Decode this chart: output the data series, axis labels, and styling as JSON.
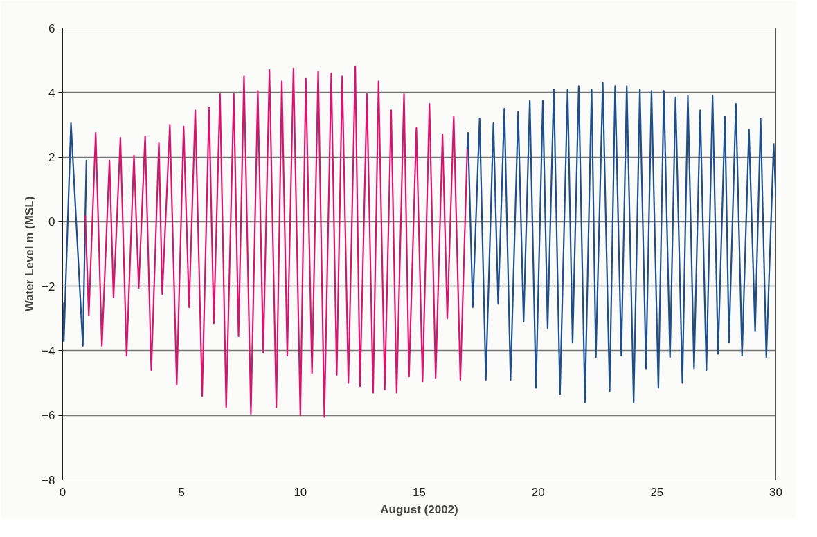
{
  "chart_data": {
    "type": "line",
    "xlabel": "August (2002)",
    "ylabel": "Water Level m (MSL)",
    "xlim": [
      0,
      30
    ],
    "xticks": [
      0,
      5,
      10,
      15,
      20,
      25,
      30
    ],
    "ylim": [
      -8,
      6
    ],
    "yticks": [
      -8,
      -6,
      -4,
      -2,
      0,
      2,
      4,
      6
    ],
    "grid": "y",
    "marker": "none",
    "line_style": "solid",
    "series": [
      {
        "color": "#1f4e8c",
        "x": [
          0,
          0.05,
          0.35,
          0.85,
          1.0,
          0.95
        ],
        "values": [
          -2.5,
          -3.7,
          3.05,
          -3.85,
          1.9,
          0.2
        ]
      },
      {
        "color": "#d6166e",
        "x": [
          0.95,
          1.1,
          1.39,
          1.65,
          1.97,
          2.14,
          2.43,
          2.69,
          3.0,
          3.2,
          3.47,
          3.73,
          4.05,
          4.19,
          4.51,
          4.8,
          5.09,
          5.32,
          5.58,
          5.87,
          6.16,
          6.36,
          6.62,
          6.88,
          7.2,
          7.4,
          7.63,
          7.92,
          8.21,
          8.44,
          8.7,
          8.99,
          9.22,
          9.45,
          9.71,
          10.0,
          10.23,
          10.49,
          10.75,
          11.01,
          11.3,
          11.53,
          11.76,
          12.02,
          12.31,
          12.51,
          12.8,
          13.06,
          13.29,
          13.55,
          13.82,
          14.05,
          14.36,
          14.57,
          14.88,
          15.14,
          15.43,
          15.69,
          15.98,
          16.18,
          16.45,
          16.73,
          17.02
        ],
        "values": [
          0.2,
          -2.9,
          2.75,
          -3.85,
          1.9,
          -2.35,
          2.6,
          -4.15,
          2.05,
          -2.05,
          2.65,
          -4.6,
          2.45,
          -2.25,
          3.0,
          -5.05,
          2.95,
          -2.65,
          3.45,
          -5.4,
          3.55,
          -3.15,
          3.95,
          -5.75,
          3.95,
          -3.55,
          4.5,
          -5.95,
          4.05,
          -4.05,
          4.7,
          -5.75,
          4.35,
          -4.15,
          4.75,
          -6.0,
          4.45,
          -4.7,
          4.65,
          -6.05,
          4.6,
          -4.75,
          4.5,
          -5.0,
          4.8,
          -5.1,
          3.95,
          -5.3,
          4.35,
          -5.2,
          3.45,
          -5.3,
          3.95,
          -4.8,
          2.9,
          -4.95,
          3.65,
          -4.85,
          2.7,
          -3.0,
          3.25,
          -4.9,
          2.25
        ]
      },
      {
        "color": "#1f4e8c",
        "x": [
          17.02,
          17.05,
          17.25,
          17.54,
          17.8,
          18.12,
          18.32,
          18.58,
          18.84,
          19.16,
          19.39,
          19.65,
          19.91,
          20.2,
          20.4,
          20.66,
          20.92,
          21.24,
          21.45,
          21.71,
          21.97,
          22.25,
          22.43,
          22.72,
          23.01,
          23.24,
          23.5,
          23.73,
          24.02,
          24.28,
          24.54,
          24.77,
          25.06,
          25.29,
          25.55,
          25.78,
          26.07,
          26.3,
          26.56,
          26.82,
          27.08,
          27.34,
          27.57,
          27.86,
          28.03,
          28.32,
          28.58,
          28.87,
          29.13,
          29.36,
          29.6,
          29.91,
          30.0
        ],
        "values": [
          2.25,
          2.75,
          -2.65,
          3.2,
          -4.9,
          3.05,
          -2.55,
          3.5,
          -4.9,
          3.4,
          -3.1,
          3.75,
          -5.15,
          3.75,
          -3.3,
          4.1,
          -5.35,
          4.1,
          -3.75,
          4.2,
          -5.6,
          4.1,
          -4.2,
          4.3,
          -5.25,
          4.2,
          -4.15,
          4.2,
          -5.6,
          4.1,
          -4.55,
          4.05,
          -5.15,
          4.05,
          -4.2,
          3.85,
          -5.0,
          3.9,
          -4.55,
          3.45,
          -4.6,
          3.9,
          -4.1,
          3.25,
          -3.75,
          3.65,
          -4.15,
          2.85,
          -3.4,
          3.2,
          -4.2,
          2.4,
          0.8
        ]
      }
    ]
  }
}
